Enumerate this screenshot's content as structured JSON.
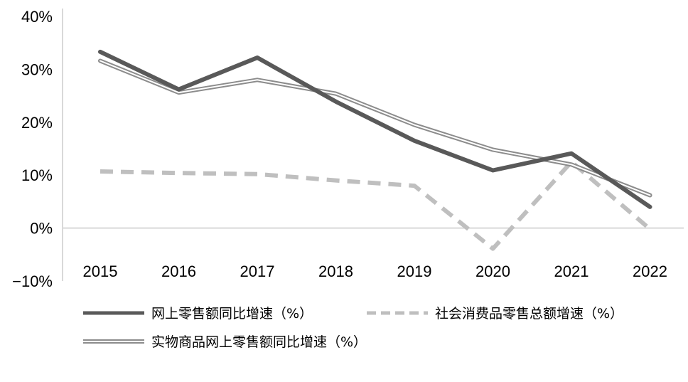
{
  "chart_data": {
    "type": "line",
    "x": [
      "2015",
      "2016",
      "2017",
      "2018",
      "2019",
      "2020",
      "2021",
      "2022"
    ],
    "ylim": [
      -10,
      40
    ],
    "yticks": [
      -10,
      0,
      10,
      20,
      30,
      40
    ],
    "ytick_labels": [
      "−10%",
      "0%",
      "10%",
      "20%",
      "30%",
      "40%"
    ],
    "grid": false,
    "legend_position": "bottom",
    "series": [
      {
        "name": "网上零售额同比增速（%）",
        "values": [
          33.3,
          26.2,
          32.2,
          23.9,
          16.5,
          10.9,
          14.1,
          4.0
        ],
        "color": "#595959",
        "style": "solid-thick"
      },
      {
        "name": "社会消费品零售总额增速（%）",
        "values": [
          10.7,
          10.4,
          10.2,
          9.0,
          8.0,
          -3.9,
          12.5,
          -0.2
        ],
        "color": "#bfbfbf",
        "style": "dashed"
      },
      {
        "name": "实物商品网上零售额同比增速（%）",
        "values": [
          31.6,
          25.6,
          28.0,
          25.4,
          19.5,
          14.8,
          12.0,
          6.2
        ],
        "color": "#8c8c8c",
        "style": "double"
      }
    ]
  }
}
